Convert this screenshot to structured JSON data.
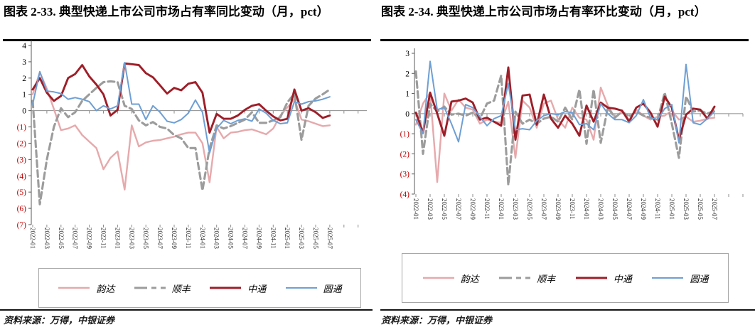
{
  "panels": [
    {
      "title": "图表 2-33. 典型快递上市公司市场占有率同比变动（月，pct）",
      "source": "资料来源：万得，中银证券"
    },
    {
      "title": "图表 2-34. 典型快递上市公司市场占有率环比变动（月，pct）",
      "source": "资料来源：万得，中银证券"
    }
  ],
  "legend": {
    "entries": [
      {
        "label": "韵达",
        "slug": "yunda",
        "color": "#E6A9AC",
        "dash": false,
        "width": 2.4
      },
      {
        "label": "顺丰",
        "slug": "shunfeng",
        "color": "#9C9C9C",
        "dash": true,
        "width": 3.1
      },
      {
        "label": "中通",
        "slug": "zhongtong",
        "color": "#9E1E28",
        "dash": false,
        "width": 2.9
      },
      {
        "label": "圆通",
        "slug": "yuantong",
        "color": "#6E9FD4",
        "dash": false,
        "width": 2.0
      }
    ]
  },
  "colors": {
    "negative_tick": "#C00000",
    "axis": "#595959",
    "zero_line": "#8c8c8c",
    "pink": "#E6A9AC",
    "gray": "#9C9C9C",
    "dark_red": "#9E1E28",
    "blue": "#6E9FD4"
  },
  "chart_data": [
    {
      "type": "line",
      "title": "典型快递上市公司市场占有率同比变动（月，pct）",
      "xlabel": "",
      "ylabel": "pct",
      "ylim": [
        -7,
        4
      ],
      "grid": false,
      "legend_position": "bottom",
      "yticks": [
        {
          "v": 4,
          "label": "4"
        },
        {
          "v": 3,
          "label": "3"
        },
        {
          "v": 2,
          "label": "2"
        },
        {
          "v": 1,
          "label": "1"
        },
        {
          "v": 0,
          "label": "0"
        },
        {
          "v": -1,
          "label": "(1)"
        },
        {
          "v": -2,
          "label": "(2)"
        },
        {
          "v": -3,
          "label": "(3)"
        },
        {
          "v": -4,
          "label": "(4)"
        },
        {
          "v": -5,
          "label": "(5)"
        },
        {
          "v": -6,
          "label": "(6)"
        },
        {
          "v": -7,
          "label": "(7)"
        }
      ],
      "x": [
        "2022-01",
        "2022-02",
        "2022-03",
        "2022-04",
        "2022-05",
        "2022-06",
        "2022-07",
        "2022-08",
        "2022-09",
        "2022-10",
        "2022-11",
        "2022-12",
        "2023-01",
        "2023-02",
        "2023-03",
        "2023-04",
        "2023-05",
        "2023-06",
        "2023-07",
        "2023-08",
        "2023-09",
        "2023-10",
        "2023-11",
        "2023-12",
        "2024-01",
        "2024-02",
        "2024-03",
        "2024-04",
        "2024-05",
        "2024-06",
        "2024-07",
        "2024-08",
        "2024-09",
        "2024-10",
        "2024-11",
        "2024-12",
        "2025-01",
        "2025-02",
        "2025-03",
        "2025-04",
        "2025-05",
        "2025-06",
        "2025-07"
      ],
      "x_tick_labels": [
        "2022-01",
        "2022-03",
        "2022-05",
        "2022-07",
        "2022-09",
        "2022-11",
        "2023-01",
        "2023-03",
        "2023-05",
        "2023-07",
        "2023-09",
        "2023-11",
        "2024-01",
        "2024-03",
        "2024-05",
        "2024-07",
        "2024-09",
        "2024-11",
        "2025-01",
        "2025-03",
        "2025-05",
        "2025-07"
      ],
      "series": [
        {
          "name": "韵达",
          "slug": "yunda",
          "color": "#E6A9AC",
          "dash": false,
          "width": 2.4,
          "values": [
            1.0,
            2.35,
            1.35,
            0.1,
            -1.2,
            -1.1,
            -0.9,
            -1.5,
            -1.9,
            -2.3,
            -3.6,
            -2.9,
            -2.5,
            -4.85,
            -0.9,
            -2.2,
            -1.95,
            -1.85,
            -1.8,
            -1.7,
            -1.6,
            -1.45,
            -1.35,
            -1.35,
            -2.0,
            -4.4,
            -1.0,
            -1.7,
            -1.35,
            -1.3,
            -1.2,
            -1.15,
            -1.3,
            -1.45,
            -1.1,
            -0.3,
            0.2,
            0.7,
            -0.55,
            -0.65,
            -0.8,
            -0.95,
            -0.9
          ]
        },
        {
          "name": "顺丰",
          "slug": "shunfeng",
          "color": "#9C9C9C",
          "dash": true,
          "width": 3.1,
          "values": [
            0.6,
            -5.75,
            -3.0,
            -1.0,
            0.15,
            -0.4,
            -0.1,
            0.6,
            1.0,
            1.4,
            1.75,
            1.8,
            1.75,
            0.3,
            0.1,
            -0.6,
            -0.9,
            -0.7,
            -1.0,
            -1.1,
            -1.5,
            -1.7,
            -2.3,
            -2.3,
            -4.9,
            -2.3,
            -0.9,
            -1.1,
            -0.95,
            -0.75,
            -0.55,
            -0.1,
            -0.75,
            -0.75,
            -0.6,
            -0.4,
            0.5,
            1.05,
            -1.8,
            0.3,
            0.75,
            1.0,
            1.3
          ]
        },
        {
          "name": "中通",
          "slug": "zhongtong",
          "color": "#9E1E28",
          "dash": false,
          "width": 2.9,
          "values": [
            1.3,
            2.0,
            1.1,
            0.6,
            0.9,
            2.0,
            2.25,
            2.8,
            2.1,
            1.6,
            1.0,
            -0.3,
            0.05,
            2.9,
            2.85,
            2.8,
            2.3,
            2.05,
            1.55,
            1.05,
            1.4,
            1.25,
            1.65,
            1.75,
            1.1,
            -1.35,
            -0.2,
            -0.5,
            -0.5,
            -0.3,
            0.05,
            0.3,
            0.4,
            0.0,
            -0.35,
            -0.6,
            -0.5,
            1.3,
            0.0,
            0.15,
            -0.1,
            -0.45,
            -0.3
          ]
        },
        {
          "name": "圆通",
          "slug": "yuantong",
          "color": "#6E9FD4",
          "dash": false,
          "width": 2.0,
          "values": [
            0.4,
            2.4,
            1.2,
            1.15,
            1.05,
            0.7,
            0.8,
            0.7,
            0.55,
            0.0,
            0.3,
            0.1,
            0.3,
            2.95,
            0.4,
            0.4,
            -0.55,
            0.3,
            -0.1,
            -0.65,
            -0.75,
            -0.55,
            -0.15,
            0.65,
            -0.1,
            -2.6,
            -1.1,
            -0.6,
            -0.8,
            -0.6,
            -0.5,
            -0.65,
            0.1,
            -0.15,
            -0.6,
            -0.8,
            -0.75,
            0.55,
            0.4,
            0.55,
            0.6,
            0.7,
            0.85
          ]
        }
      ]
    },
    {
      "type": "line",
      "title": "典型快递上市公司市场占有率环比变动（月，pct）",
      "xlabel": "",
      "ylabel": "pct",
      "ylim": [
        -4,
        3
      ],
      "grid": false,
      "legend_position": "bottom",
      "yticks": [
        {
          "v": 3,
          "label": "3"
        },
        {
          "v": 2,
          "label": "2"
        },
        {
          "v": 1,
          "label": "1"
        },
        {
          "v": 0,
          "label": "0"
        },
        {
          "v": -1,
          "label": "(1)"
        },
        {
          "v": -2,
          "label": "(2)"
        },
        {
          "v": -3,
          "label": "(3)"
        },
        {
          "v": -4,
          "label": "(4)"
        }
      ],
      "x": [
        "2022-01",
        "2022-02",
        "2022-03",
        "2022-04",
        "2022-05",
        "2022-06",
        "2022-07",
        "2022-08",
        "2022-09",
        "2022-10",
        "2022-11",
        "2022-12",
        "2023-01",
        "2023-02",
        "2023-03",
        "2023-04",
        "2023-05",
        "2023-06",
        "2023-07",
        "2023-08",
        "2023-09",
        "2023-10",
        "2023-11",
        "2023-12",
        "2024-01",
        "2024-02",
        "2024-03",
        "2024-04",
        "2024-05",
        "2024-06",
        "2024-07",
        "2024-08",
        "2024-09",
        "2024-10",
        "2024-11",
        "2024-12",
        "2025-01",
        "2025-02",
        "2025-03",
        "2025-04",
        "2025-05",
        "2025-06",
        "2025-07"
      ],
      "x_tick_labels": [
        "2022-01",
        "2022-03",
        "2022-05",
        "2022-07",
        "2022-09",
        "2022-11",
        "2023-01",
        "2023-03",
        "2023-05",
        "2023-07",
        "2023-09",
        "2023-11",
        "2024-01",
        "2024-03",
        "2024-05",
        "2024-07",
        "2024-09",
        "2024-11",
        "2025-01",
        "2025-03",
        "2025-05",
        "2025-07"
      ],
      "series": [
        {
          "name": "韵达",
          "slug": "yunda",
          "color": "#E6A9AC",
          "dash": false,
          "width": 2.4,
          "values": [
            -0.55,
            0.5,
            1.05,
            -3.4,
            1.0,
            0.15,
            0.7,
            0.3,
            0.2,
            -0.5,
            -0.3,
            -0.4,
            -0.45,
            0.6,
            -2.2,
            0.65,
            0.3,
            -0.7,
            0.5,
            0.65,
            -0.3,
            -0.7,
            0.3,
            -0.2,
            -0.3,
            -1.3,
            1.3,
            0.4,
            -0.2,
            0.1,
            -0.3,
            0.2,
            -0.1,
            -0.3,
            -0.15,
            -0.1,
            0.15,
            -0.3,
            -0.15,
            -0.4,
            -0.35,
            -0.25,
            -0.2
          ]
        },
        {
          "name": "顺丰",
          "slug": "shunfeng",
          "color": "#9C9C9C",
          "dash": true,
          "width": 3.1,
          "values": [
            2.1,
            -2.0,
            0.5,
            0.1,
            0.35,
            -0.05,
            0.0,
            -0.1,
            0.05,
            -0.25,
            0.5,
            0.65,
            1.9,
            -3.55,
            0.1,
            -0.5,
            -0.3,
            -0.5,
            -0.25,
            -0.15,
            -0.4,
            0.3,
            -0.3,
            1.2,
            -1.5,
            1.2,
            -1.45,
            0.3,
            -0.2,
            0.1,
            -0.15,
            0.1,
            -0.1,
            -0.2,
            -0.3,
            1.05,
            -0.5,
            -2.2,
            0.85,
            0.1,
            0.15,
            0.0,
            0.15
          ]
        },
        {
          "name": "中通",
          "slug": "zhongtong",
          "color": "#9E1E28",
          "dash": false,
          "width": 2.9,
          "values": [
            0.05,
            -0.95,
            1.05,
            0.0,
            -1.1,
            0.6,
            0.65,
            0.75,
            0.55,
            -0.3,
            -0.2,
            -0.4,
            -0.6,
            2.3,
            -1.3,
            0.9,
            0.95,
            -0.55,
            0.95,
            -0.25,
            -0.7,
            -0.1,
            -0.5,
            -1.1,
            0.4,
            -0.4,
            0.55,
            0.3,
            0.25,
            0.15,
            -0.4,
            0.3,
            0.5,
            0.05,
            -0.65,
            0.85,
            0.3,
            -1.3,
            -0.05,
            0.25,
            0.2,
            -0.25,
            0.35
          ]
        },
        {
          "name": "圆通",
          "slug": "yuantong",
          "color": "#6E9FD4",
          "dash": false,
          "width": 2.0,
          "values": [
            -0.3,
            -1.0,
            2.6,
            0.2,
            0.3,
            -0.5,
            -1.4,
            0.45,
            0.3,
            -0.15,
            -0.6,
            -0.25,
            -0.1,
            1.5,
            -0.8,
            -0.75,
            -0.8,
            -0.35,
            -0.1,
            0.0,
            -0.05,
            0.1,
            0.05,
            -0.55,
            -0.5,
            -0.8,
            0.5,
            0.0,
            -0.3,
            -0.3,
            -0.45,
            -0.1,
            0.7,
            -0.2,
            -0.3,
            0.25,
            0.45,
            -1.45,
            2.45,
            -0.45,
            -0.55,
            -0.25,
            0.1
          ]
        }
      ]
    }
  ]
}
